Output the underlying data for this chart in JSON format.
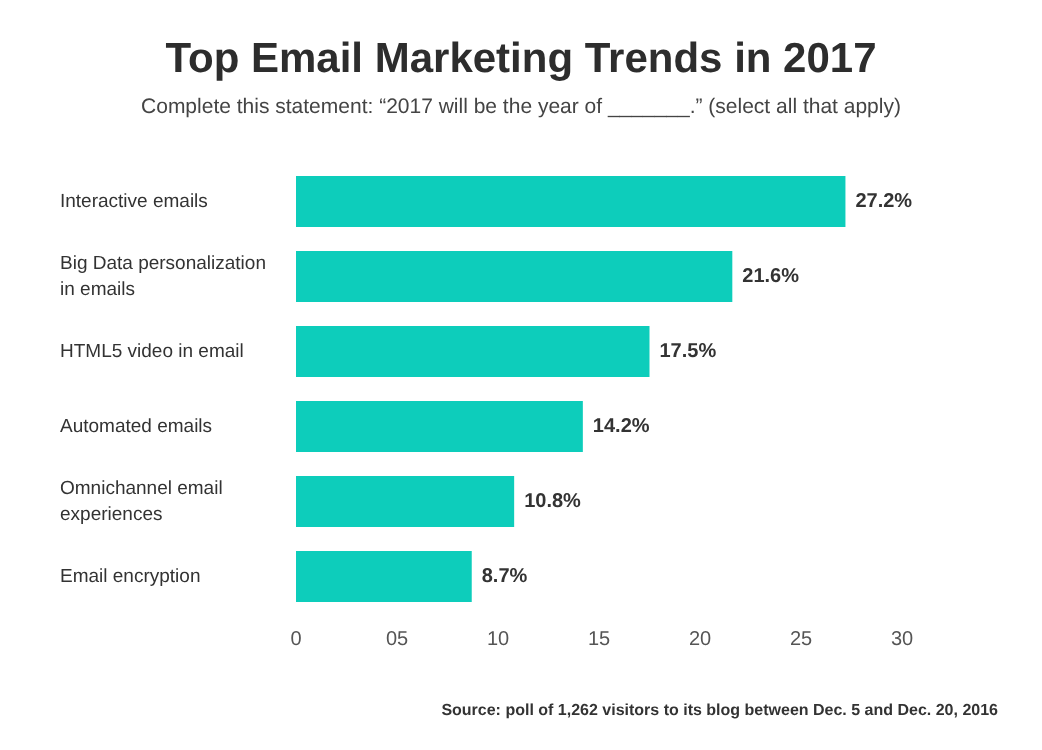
{
  "chart_data": {
    "type": "bar",
    "orientation": "horizontal",
    "title": "Top Email Marketing Trends in 2017",
    "subtitle": "Complete this statement: “2017 will be the year of _______.” (select all that apply)",
    "categories": [
      "Interactive emails",
      "Big Data personalization in emails",
      "HTML5 video in email",
      "Automated emails",
      "Omnichannel email experiences",
      "Email encryption"
    ],
    "values": [
      27.2,
      21.6,
      17.5,
      14.2,
      10.8,
      8.7
    ],
    "value_labels": [
      "27.2%",
      "21.6%",
      "17.5%",
      "14.2%",
      "10.8%",
      "8.7%"
    ],
    "color": "#0dcdbb",
    "xlim": [
      0,
      30
    ],
    "xticks": [
      0,
      {
        "value": 5,
        "label": "05"
      },
      10,
      15,
      20,
      25,
      30
    ],
    "grid": false,
    "annotations": [
      "Source: poll of 1,262 visitors to its blog between Dec. 5 and Dec. 20, 2016"
    ]
  }
}
